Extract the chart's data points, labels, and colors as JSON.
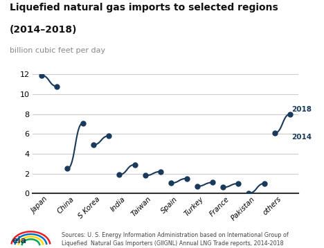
{
  "title_line1": "Liquefied natural gas imports to selected regions",
  "title_line2": "(2014–2018)",
  "subtitle": "billion cubic feet per day",
  "categories": [
    "Japan",
    "China",
    "S Korea",
    "India",
    "Taiwan",
    "Spain",
    "Turkey",
    "France",
    "Pakistan",
    "others"
  ],
  "values_2014": [
    11.9,
    2.5,
    4.9,
    1.9,
    1.8,
    1.05,
    0.72,
    0.62,
    0.02,
    6.1
  ],
  "values_2018": [
    10.8,
    7.1,
    5.8,
    2.9,
    2.2,
    1.5,
    1.1,
    1.0,
    1.0,
    8.0
  ],
  "line_color": "#1a3a5c",
  "dot_color": "#1a3a5c",
  "ylim": [
    0,
    12
  ],
  "yticks": [
    0,
    2,
    4,
    6,
    8,
    10,
    12
  ],
  "grid_color": "#cccccc",
  "bg_color": "#ffffff",
  "source_text": "Sources: U. S. Energy Information Administration based on International Group of\nLiquefied  Natural Gas Importers (GIIGNL) Annual LNG Trade reports, 2014-2018",
  "label_2014": "2014",
  "label_2018": "2018",
  "label_color": "#1a3a5c"
}
